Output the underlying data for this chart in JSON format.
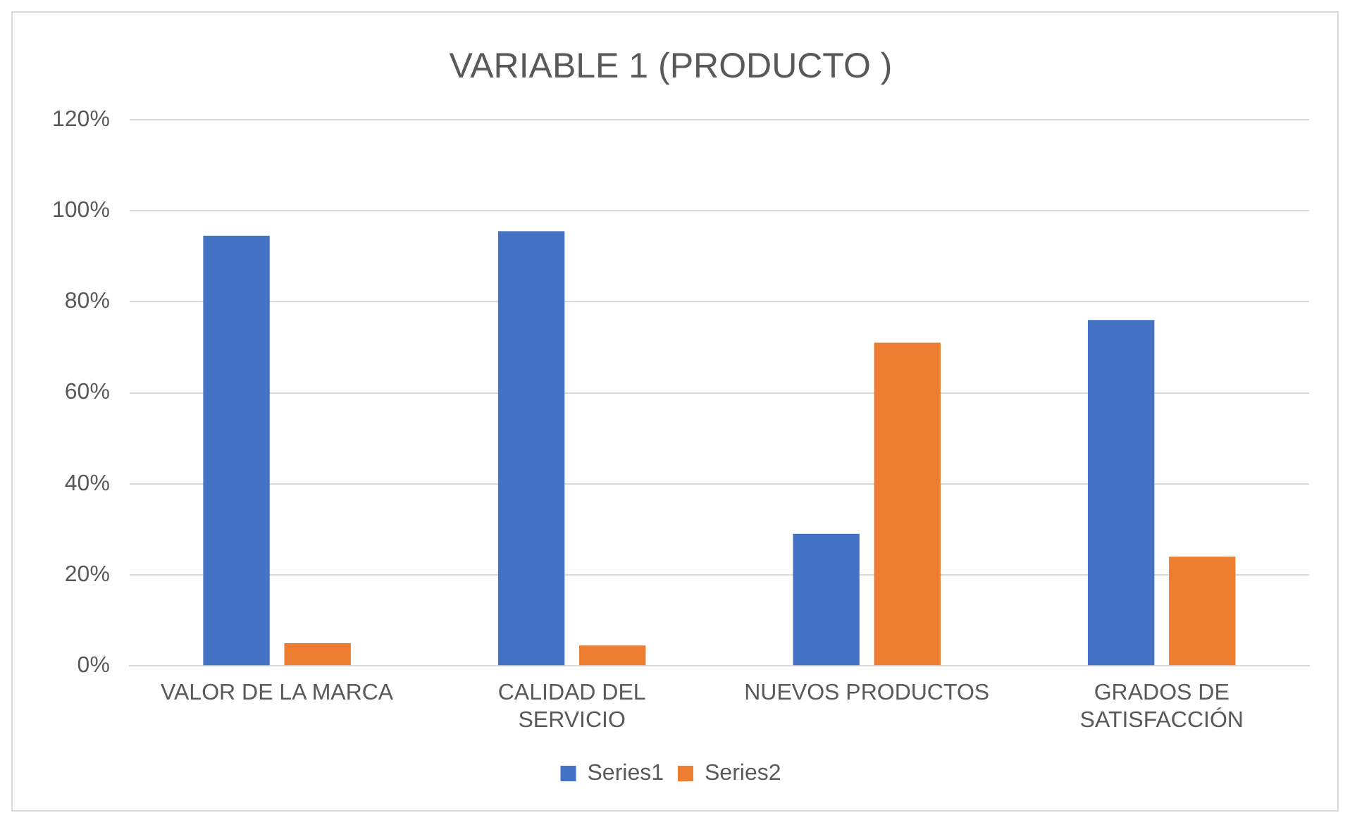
{
  "chart_data": {
    "type": "bar",
    "title": "VARIABLE 1 (PRODUCTO )",
    "categories": [
      "VALOR DE LA MARCA",
      "CALIDAD DEL SERVICIO",
      "NUEVOS PRODUCTOS",
      "GRADOS DE SATISFACCIÓN"
    ],
    "series": [
      {
        "name": "Series1",
        "color": "#4472c4",
        "values": [
          94.5,
          95.5,
          29,
          76
        ]
      },
      {
        "name": "Series2",
        "color": "#ed7d31",
        "values": [
          5,
          4.5,
          71,
          24
        ]
      }
    ],
    "ylim": [
      0,
      120
    ],
    "yticks": [
      {
        "value": 0,
        "label": "0%"
      },
      {
        "value": 20,
        "label": "20%"
      },
      {
        "value": 40,
        "label": "40%"
      },
      {
        "value": 60,
        "label": "60%"
      },
      {
        "value": 80,
        "label": "80%"
      },
      {
        "value": 100,
        "label": "100%"
      },
      {
        "value": 120,
        "label": "120%"
      }
    ],
    "grid": "y",
    "legend": "bottom"
  }
}
